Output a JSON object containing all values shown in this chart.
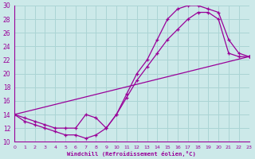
{
  "xlabel": "Windchill (Refroidissement éolien,°C)",
  "xlim": [
    0,
    23
  ],
  "ylim": [
    10,
    30
  ],
  "xticks": [
    0,
    1,
    2,
    3,
    4,
    5,
    6,
    7,
    8,
    9,
    10,
    11,
    12,
    13,
    14,
    15,
    16,
    17,
    18,
    19,
    20,
    21,
    22,
    23
  ],
  "yticks": [
    10,
    12,
    14,
    16,
    18,
    20,
    22,
    24,
    26,
    28,
    30
  ],
  "bg_color": "#cce9e9",
  "grid_color": "#aad4d4",
  "line_color": "#990099",
  "line1_x": [
    0,
    1,
    2,
    3,
    4,
    5,
    6,
    7,
    8,
    9,
    10,
    11,
    12,
    13,
    14,
    15,
    16,
    17,
    18,
    19,
    20,
    21,
    22,
    23
  ],
  "line1_y": [
    14,
    13,
    12.5,
    12,
    11.5,
    11,
    11,
    10.5,
    11,
    12,
    14,
    17,
    20,
    22,
    25,
    28,
    29.5,
    30,
    30,
    29.5,
    29,
    25,
    23,
    22.5
  ],
  "line2_x": [
    0,
    1,
    2,
    3,
    4,
    5,
    6,
    7,
    8,
    9,
    10,
    11,
    12,
    13,
    14,
    15,
    16,
    17,
    18,
    19,
    20,
    21,
    22,
    23
  ],
  "line2_y": [
    14,
    13.5,
    13,
    12.5,
    12,
    12,
    12,
    14,
    13.5,
    12,
    14,
    16.5,
    19,
    21,
    23,
    25,
    26.5,
    28,
    29,
    29,
    28,
    23,
    22.5,
    22.5
  ],
  "line3_x": [
    0,
    23
  ],
  "line3_y": [
    14,
    22.5
  ]
}
